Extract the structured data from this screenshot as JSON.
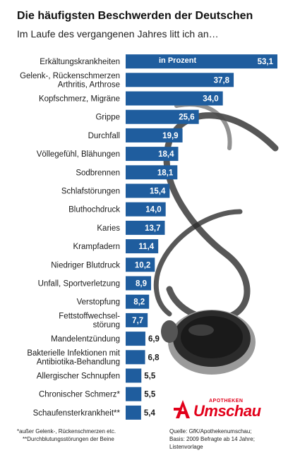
{
  "title": "Die häufigsten Beschwerden der Deutschen",
  "subtitle": "Im Laufe des vergangenen Jahres litt ich an…",
  "unit_label": "in Prozent",
  "colors": {
    "bar": "#1f5d9e",
    "bar_label_text": "#ffffff"
  },
  "chart_data": {
    "type": "bar",
    "orientation": "horizontal",
    "title": "Die häufigsten Beschwerden der Deutschen",
    "subtitle": "Im Laufe des vergangenen Jahres litt ich an…",
    "xlabel": "",
    "ylabel": "",
    "xlim": [
      0,
      53.1
    ],
    "grid": false,
    "categories": [
      [
        "Erkältungskrankheiten"
      ],
      [
        "Gelenk-, Rückenschmerzen",
        "Arthritis, Arthrose"
      ],
      [
        "Kopfschmerz, Migräne"
      ],
      [
        "Grippe"
      ],
      [
        "Durchfall"
      ],
      [
        "Völlegefühl, Blähungen"
      ],
      [
        "Sodbrennen"
      ],
      [
        "Schlafstörungen"
      ],
      [
        "Bluthochdruck"
      ],
      [
        "Karies"
      ],
      [
        "Krampfadern"
      ],
      [
        "Niedriger Blutdruck"
      ],
      [
        "Unfall, Sportverletzung"
      ],
      [
        "Verstopfung"
      ],
      [
        "Fettstoffwechsel-",
        "störung"
      ],
      [
        "Mandelentzündung"
      ],
      [
        "Bakterielle Infektionen mit",
        "Antibiotika-Behandlung"
      ],
      [
        "Allergischer Schnupfen"
      ],
      [
        "Chronischer Schmerz*"
      ],
      [
        "Schaufensterkrankheit**"
      ]
    ],
    "values": [
      53.1,
      37.8,
      34.0,
      25.6,
      19.9,
      18.4,
      18.1,
      15.4,
      14.0,
      13.7,
      11.4,
      10.2,
      8.9,
      8.2,
      7.7,
      6.9,
      6.8,
      5.5,
      5.5,
      5.4
    ],
    "value_labels": [
      "53,1",
      "37,8",
      "34,0",
      "25,6",
      "19,9",
      "18,4",
      "18,1",
      "15,4",
      "14,0",
      "13,7",
      "11,4",
      "10,2",
      "8,9",
      "8,2",
      "7,7",
      "6,9",
      "6,8",
      "5,5",
      "5,5",
      "5,4"
    ],
    "bar_unit_label": "in Prozent"
  },
  "footnotes": {
    "line1": "*außer Gelenk-, Rückenschmerzen etc.",
    "line2": "**Durchblutungsstörungen der Beine"
  },
  "source": {
    "line1": "Quelle: GfK/Apothekenumschau;",
    "line2": "Basis: 2009 Befragte ab 14 Jahre;",
    "line3": "Listenvorlage"
  },
  "logo": {
    "brand_small": "APOTHEKEN",
    "brand_name": "Umschau",
    "brand_color": "#e2001a"
  }
}
